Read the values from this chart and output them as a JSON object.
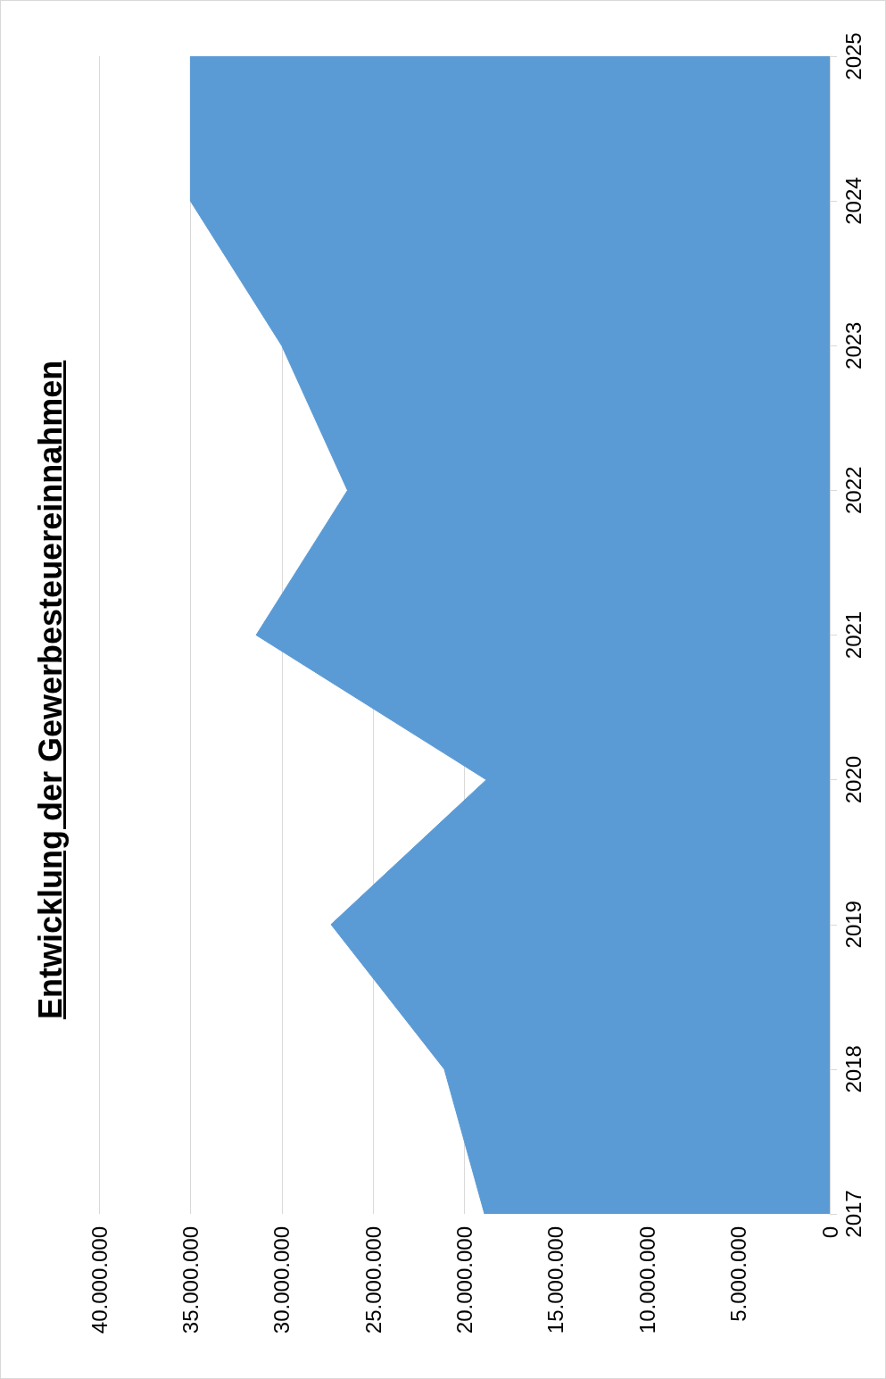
{
  "chart_data": {
    "type": "area",
    "title": "Entwicklung der Gewerbesteuereinnahmen",
    "orientation": "horizontal",
    "categories": [
      "2025",
      "2024",
      "2023",
      "2022",
      "2021",
      "2020",
      "2019",
      "2018",
      "2017"
    ],
    "values": [
      35000000,
      35000000,
      30000000,
      26400000,
      31400000,
      18800000,
      27300000,
      21100000,
      18900000
    ],
    "color": "#5b9bd5",
    "xlim": [
      40000000,
      0
    ],
    "xticks": [
      0,
      {
        "value": 5000000,
        "label": "5.000.000"
      },
      {
        "value": 10000000,
        "label": "10.000.000"
      },
      {
        "value": 15000000,
        "label": "15.000.000"
      },
      {
        "value": 20000000,
        "label": "20.000.000"
      },
      {
        "value": 25000000,
        "label": "25.000.000"
      },
      {
        "value": 30000000,
        "label": "30.000.000"
      },
      {
        "value": 35000000,
        "label": "35.000.000"
      },
      {
        "value": 40000000,
        "label": "40.000.000"
      }
    ],
    "grid": "x"
  }
}
